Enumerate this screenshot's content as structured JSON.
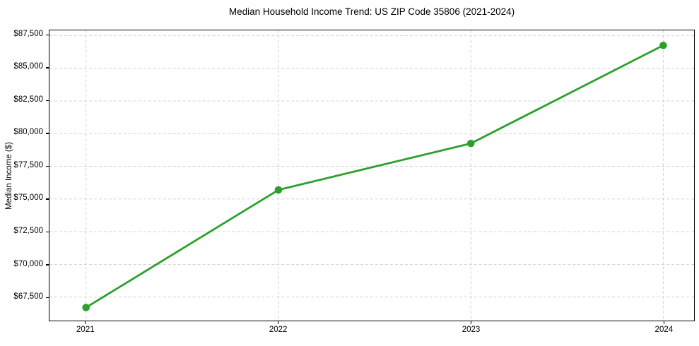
{
  "chart_data": {
    "type": "line",
    "title": "Median Household Income Trend: US ZIP Code 35806 (2021-2024)",
    "xlabel": "",
    "ylabel": "Median Income ($)",
    "x": [
      2021,
      2022,
      2023,
      2024
    ],
    "x_tick_labels": [
      "2021",
      "2022",
      "2023",
      "2024"
    ],
    "series": [
      {
        "name": "Median Household Income",
        "values": [
          66700,
          75700,
          79250,
          86750
        ]
      }
    ],
    "y_ticks": [
      67500,
      70000,
      72500,
      75000,
      77500,
      80000,
      82500,
      85000,
      87500
    ],
    "y_tick_labels": [
      "$67,500",
      "$70,000",
      "$72,500",
      "$75,000",
      "$77,500",
      "$80,000",
      "$82,500",
      "$85,000",
      "$87,500"
    ],
    "ylim": [
      65700,
      87900
    ],
    "xlim": [
      2020.81,
      2024.16
    ],
    "grid": true,
    "legend": "none",
    "line_color": "#2ca02c",
    "marker": "circle",
    "marker_radius": 5.3,
    "line_width": 2.8,
    "grid_color": "#cccccc",
    "axis_color": "#000000",
    "background": "#ffffff"
  }
}
